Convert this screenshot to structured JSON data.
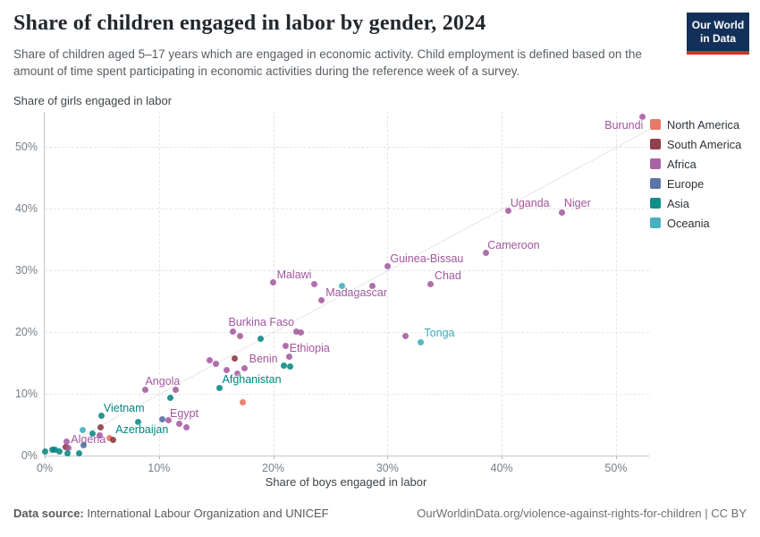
{
  "header": {
    "title": "Share of children engaged in labor by gender, 2024",
    "subtitle": "Share of children aged 5–17 years which are engaged in economic activity. Child employment is defined based on the amount of time spent participating in economic activities during the reference week of a survey.",
    "logo": {
      "line1": "Our World",
      "line2": "in Data"
    }
  },
  "legend": {
    "items": [
      {
        "label": "North America",
        "color": "#e56e5a"
      },
      {
        "label": "South America",
        "color": "#883039"
      },
      {
        "label": "Africa",
        "color": "#a2559c"
      },
      {
        "label": "Europe",
        "color": "#4c6a9c"
      },
      {
        "label": "Asia",
        "color": "#00847e"
      },
      {
        "label": "Oceania",
        "color": "#38aaba"
      }
    ]
  },
  "chart_data": {
    "type": "scatter",
    "xlabel": "Share of boys engaged in labor",
    "ylabel": "Share of girls engaged in labor",
    "x_ticks": [
      0,
      10,
      20,
      30,
      40,
      50
    ],
    "y_ticks": [
      0,
      10,
      20,
      30,
      40,
      50
    ],
    "tick_suffix": "%",
    "xlim": [
      0,
      52.9
    ],
    "ylim": [
      0,
      55.7
    ],
    "diagonal_line": true,
    "grid": true,
    "legend_position": "right",
    "series": [
      {
        "name": "North America",
        "color": "#e56e5a",
        "points": [
          {
            "x": 17.3,
            "y": 8.6
          },
          {
            "x": 5.7,
            "y": 2.8
          }
        ]
      },
      {
        "name": "South America",
        "color": "#883039",
        "points": [
          {
            "x": 16.6,
            "y": 15.7
          },
          {
            "x": 4.9,
            "y": 4.6
          },
          {
            "x": 6.0,
            "y": 2.5
          },
          {
            "x": 1.8,
            "y": 1.4
          }
        ]
      },
      {
        "name": "Africa",
        "color": "#a2559c",
        "points": [
          {
            "x": 52.3,
            "y": 54.9,
            "label": "Burundi",
            "align": "end",
            "dx": 1,
            "dy": 10
          },
          {
            "x": 45.3,
            "y": 39.4,
            "label": "Niger",
            "align": "start",
            "dx": 2,
            "dy": -10
          },
          {
            "x": 40.6,
            "y": 39.7,
            "label": "Uganda",
            "align": "start",
            "dx": 2,
            "dy": -8
          },
          {
            "x": 38.6,
            "y": 32.9,
            "label": "Cameroon",
            "align": "start",
            "dx": 2,
            "dy": -8
          },
          {
            "x": 30.0,
            "y": 30.7,
            "label": "Guinea-Bissau",
            "align": "start",
            "dx": 3,
            "dy": -8
          },
          {
            "x": 33.8,
            "y": 27.8,
            "label": "Chad",
            "align": "start",
            "dx": 4,
            "dy": -9
          },
          {
            "x": 20.0,
            "y": 28.0,
            "label": "Malawi",
            "align": "start",
            "dx": 4,
            "dy": -8
          },
          {
            "x": 24.2,
            "y": 25.1,
            "label": "Madagascar",
            "align": "start",
            "dx": 5,
            "dy": -8
          },
          {
            "x": 22.0,
            "y": 20.1,
            "label": "Burkina Faso",
            "align": "end",
            "dx": -2,
            "dy": -10
          },
          {
            "x": 21.1,
            "y": 17.7,
            "label": "Ethiopia",
            "align": "start",
            "dx": 4,
            "dy": 3
          },
          {
            "x": 17.5,
            "y": 14.2,
            "label": "Benin",
            "align": "start",
            "dx": 5,
            "dy": -10
          },
          {
            "x": 8.8,
            "y": 10.6,
            "label": "Angola",
            "align": "start",
            "dx": 0,
            "dy": -9
          },
          {
            "x": 10.8,
            "y": 5.7,
            "label": "Egypt",
            "align": "start",
            "dx": 2,
            "dy": -7
          },
          {
            "x": 1.9,
            "y": 2.2,
            "label": "Algeria",
            "align": "start",
            "dx": 5,
            "dy": -2
          },
          {
            "x": 23.6,
            "y": 27.8
          },
          {
            "x": 28.7,
            "y": 27.5
          },
          {
            "x": 22.4,
            "y": 19.9
          },
          {
            "x": 16.5,
            "y": 20.1
          },
          {
            "x": 17.1,
            "y": 19.3
          },
          {
            "x": 31.6,
            "y": 19.3
          },
          {
            "x": 21.4,
            "y": 16.1
          },
          {
            "x": 14.4,
            "y": 15.4
          },
          {
            "x": 15.0,
            "y": 14.9
          },
          {
            "x": 15.9,
            "y": 13.9
          },
          {
            "x": 16.9,
            "y": 13.3
          },
          {
            "x": 11.5,
            "y": 10.6
          },
          {
            "x": 11.8,
            "y": 5.2
          },
          {
            "x": 12.4,
            "y": 4.6
          },
          {
            "x": 4.8,
            "y": 3.2
          },
          {
            "x": 2.1,
            "y": 1.2
          }
        ]
      },
      {
        "name": "Europe",
        "color": "#4c6a9c",
        "points": [
          {
            "x": 10.3,
            "y": 5.9
          },
          {
            "x": 3.4,
            "y": 1.7
          }
        ]
      },
      {
        "name": "Asia",
        "color": "#00847e",
        "points": [
          {
            "x": 15.3,
            "y": 11.0,
            "label": "Afghanistan",
            "align": "start",
            "dx": 3,
            "dy": -9
          },
          {
            "x": 5.0,
            "y": 6.4,
            "label": "Vietnam",
            "align": "start",
            "dx": 2,
            "dy": -8
          },
          {
            "x": 8.2,
            "y": 5.5,
            "label": "Azerbaijan",
            "align": "center",
            "dx": 4,
            "dy": 9
          },
          {
            "x": 18.9,
            "y": 19.0
          },
          {
            "x": 20.9,
            "y": 14.6
          },
          {
            "x": 21.5,
            "y": 14.5
          },
          {
            "x": 11.0,
            "y": 9.4
          },
          {
            "x": 4.2,
            "y": 3.6
          },
          {
            "x": 0.9,
            "y": 0.9
          },
          {
            "x": 1.3,
            "y": 0.6
          },
          {
            "x": 0.0,
            "y": 0.6
          },
          {
            "x": 0.7,
            "y": 0.9
          },
          {
            "x": 2.0,
            "y": 0.3
          },
          {
            "x": 3.0,
            "y": 0.4
          }
        ]
      },
      {
        "name": "Oceania",
        "color": "#38aaba",
        "points": [
          {
            "x": 32.9,
            "y": 18.4,
            "label": "Tonga",
            "align": "start",
            "dx": 4,
            "dy": -10
          },
          {
            "x": 26.0,
            "y": 27.5
          },
          {
            "x": 3.3,
            "y": 4.1
          }
        ]
      }
    ]
  },
  "footer": {
    "source_label": "Data source:",
    "source_text": " International Labour Organization and UNICEF",
    "link_text": "OurWorldinData.org/violence-against-rights-for-children | CC BY"
  }
}
